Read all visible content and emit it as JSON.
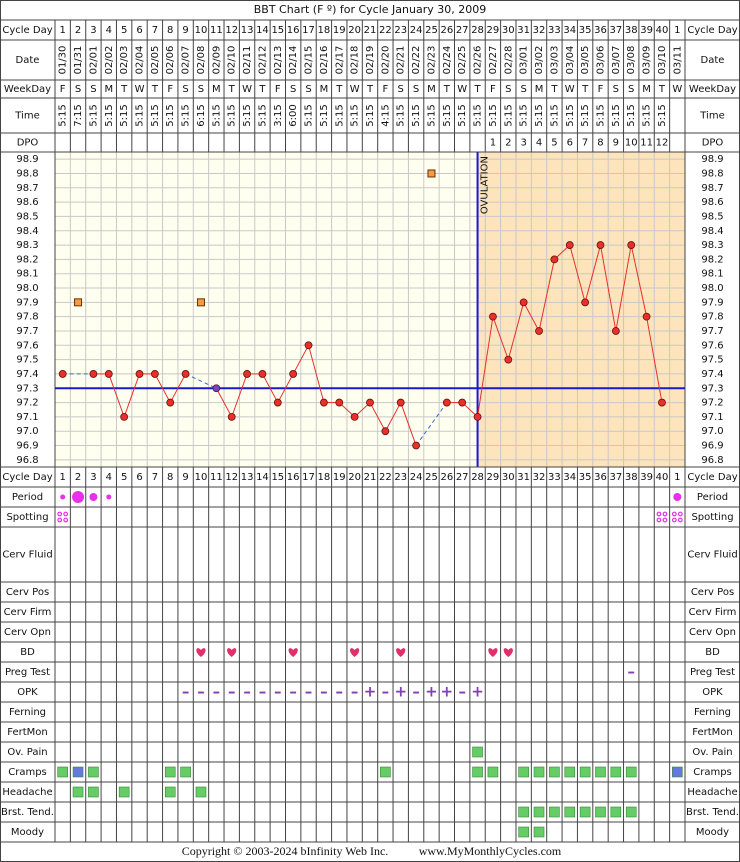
{
  "title": "BBT Chart (F º) for Cycle January 30, 2009",
  "header_labels": {
    "cycle_day": "Cycle Day",
    "date": "Date",
    "weekday": "WeekDay",
    "time": "Time",
    "dpo": "DPO"
  },
  "columns": {
    "cycle_day": [
      1,
      2,
      3,
      4,
      5,
      6,
      7,
      8,
      9,
      10,
      11,
      12,
      13,
      14,
      15,
      16,
      17,
      18,
      19,
      20,
      21,
      22,
      23,
      24,
      25,
      26,
      27,
      28,
      29,
      30,
      31,
      32,
      33,
      34,
      35,
      36,
      37,
      38,
      39,
      40,
      1
    ],
    "date": [
      "01/30",
      "01/31",
      "02/01",
      "02/02",
      "02/03",
      "02/04",
      "02/05",
      "02/06",
      "02/07",
      "02/08",
      "02/09",
      "02/10",
      "02/11",
      "02/12",
      "02/13",
      "02/14",
      "02/15",
      "02/16",
      "02/17",
      "02/18",
      "02/19",
      "02/20",
      "02/21",
      "02/22",
      "02/23",
      "02/24",
      "02/25",
      "02/26",
      "02/27",
      "02/28",
      "03/01",
      "03/02",
      "03/03",
      "03/04",
      "03/05",
      "03/06",
      "03/07",
      "03/08",
      "03/09",
      "03/10",
      "03/11"
    ],
    "weekday": [
      "F",
      "S",
      "S",
      "M",
      "T",
      "W",
      "T",
      "F",
      "S",
      "S",
      "M",
      "T",
      "W",
      "T",
      "F",
      "S",
      "S",
      "M",
      "T",
      "W",
      "T",
      "F",
      "S",
      "S",
      "M",
      "T",
      "W",
      "T",
      "F",
      "S",
      "S",
      "M",
      "T",
      "W",
      "T",
      "F",
      "S",
      "S",
      "M",
      "T",
      "W"
    ],
    "time": [
      "5:15",
      "7:15",
      "5:15",
      "5:15",
      "5:15",
      "5:15",
      "5:15",
      "5:15",
      "5:15",
      "6:15",
      "5:15",
      "5:15",
      "5:15",
      "5:15",
      "3:15",
      "6:00",
      "5:15",
      "5:15",
      "5:15",
      "5:15",
      "5:15",
      "4:15",
      "5:15",
      "5:15",
      "5:15",
      "5:15",
      "5:15",
      "5:15",
      "5:15",
      "5:15",
      "5:15",
      "5:15",
      "5:15",
      "5:15",
      "5:15",
      "5:15",
      "5:15",
      "5:15",
      "5:15",
      "5:15",
      null
    ],
    "dpo": [
      null,
      null,
      null,
      null,
      null,
      null,
      null,
      null,
      null,
      null,
      null,
      null,
      null,
      null,
      null,
      null,
      null,
      null,
      null,
      null,
      null,
      null,
      null,
      null,
      null,
      null,
      null,
      null,
      1,
      2,
      3,
      4,
      5,
      6,
      7,
      8,
      9,
      10,
      11,
      12,
      null
    ]
  },
  "chart_data": {
    "type": "line",
    "values": [
      97.4,
      97.9,
      97.4,
      97.4,
      97.1,
      97.4,
      97.4,
      97.2,
      97.4,
      97.9,
      97.3,
      97.1,
      97.4,
      97.4,
      97.2,
      97.4,
      97.6,
      97.2,
      97.2,
      97.1,
      97.2,
      97.0,
      97.2,
      96.9,
      98.8,
      97.2,
      97.2,
      97.1,
      97.8,
      97.5,
      97.9,
      97.7,
      98.2,
      98.3,
      97.9,
      98.3,
      97.7,
      98.3,
      97.8,
      97.2
    ],
    "markers": [
      "dot",
      "square",
      "dot",
      "dot",
      "dot",
      "dot",
      "dot",
      "dot",
      "dot",
      "square",
      "alt",
      "dot",
      "dot",
      "dot",
      "dot",
      "dot",
      "dot",
      "dot",
      "dot",
      "dot",
      "dot",
      "dot",
      "dot",
      "dot",
      "square",
      "dot",
      "dot",
      "dot",
      "dot",
      "dot",
      "dot",
      "dot",
      "dot",
      "dot",
      "dot",
      "dot",
      "dot",
      "dot",
      "dot",
      "dot"
    ],
    "color": "#e8302a",
    "ylim": [
      96.75,
      98.95
    ],
    "yticks": [
      98.9,
      98.8,
      98.7,
      98.6,
      98.5,
      98.4,
      98.3,
      98.2,
      98.1,
      {
        "value": 98,
        "label": "98.0"
      },
      97.9,
      97.8,
      97.7,
      97.6,
      97.5,
      97.4,
      97.3,
      97.2,
      97.1,
      {
        "value": 97,
        "label": "97.0"
      },
      96.9,
      96.8
    ],
    "grid": true,
    "coverline": 97.3,
    "ovulation_day": 28,
    "ovulation_label": "OVULATION"
  },
  "rows": [
    {
      "label": "Period",
      "symbol": "dot",
      "days": [
        1,
        2,
        3,
        4,
        41
      ],
      "levels": [
        1,
        3,
        2,
        1,
        2
      ],
      "color": "#e830e8"
    },
    {
      "label": "Spotting",
      "symbol": "spots",
      "days": [
        1,
        40,
        41
      ],
      "color": "#e830e8"
    },
    {
      "label": "Cerv Fluid"
    },
    {
      "label": "Cerv Pos"
    },
    {
      "label": "Cerv Firm"
    },
    {
      "label": "Cerv Opn"
    },
    {
      "label": "BD",
      "symbol": "heart",
      "days": [
        10,
        12,
        16,
        20,
        23,
        29,
        30
      ],
      "color": "#e0306a"
    },
    {
      "label": "Preg Test",
      "symbol": "text",
      "days": [
        38
      ],
      "labels": [
        "–"
      ],
      "color": "#8040b0"
    },
    {
      "label": "OPK",
      "symbol": "text",
      "days": [
        9,
        10,
        11,
        12,
        13,
        14,
        15,
        16,
        17,
        18,
        19,
        20,
        21,
        22,
        23,
        24,
        25,
        26,
        27,
        28
      ],
      "labels": [
        "–",
        "–",
        "–",
        "–",
        "–",
        "–",
        "–",
        "–",
        "–",
        "–",
        "–",
        "–",
        "+",
        "–",
        "+",
        "–",
        "+",
        "+",
        "–",
        "+"
      ],
      "color": "#8040b0"
    },
    {
      "label": "Ferning"
    },
    {
      "label": "FertMon"
    },
    {
      "label": "Ov. Pain",
      "symbol": "box",
      "days": [
        28
      ],
      "color": "#66cc66"
    },
    {
      "label": "Cramps",
      "symbol": "box",
      "days": [
        1,
        2,
        3,
        8,
        9,
        22,
        28,
        29,
        31,
        32,
        33,
        34,
        35,
        36,
        37,
        38,
        41
      ],
      "color": "#66cc66",
      "colors": [
        "#66cc66",
        "#6677dd",
        "#66cc66",
        "#66cc66",
        "#66cc66",
        "#66cc66",
        "#66cc66",
        "#66cc66",
        "#66cc66",
        "#66cc66",
        "#66cc66",
        "#66cc66",
        "#66cc66",
        "#66cc66",
        "#66cc66",
        "#66cc66",
        "#6677dd"
      ]
    },
    {
      "label": "Headache",
      "symbol": "box",
      "days": [
        2,
        3,
        5,
        8,
        10
      ],
      "color": "#66cc66"
    },
    {
      "label": "Brst. Tend.",
      "symbol": "box",
      "days": [
        31,
        32,
        33,
        34,
        35,
        36,
        37,
        38
      ],
      "color": "#66cc66"
    },
    {
      "label": "Moody",
      "symbol": "box",
      "days": [
        31,
        32
      ],
      "color": "#66cc66"
    }
  ],
  "footer": {
    "copyright": "Copyright © 2003-2024 bInfinity Web Inc.",
    "url": "www.MyMonthlyCycles.com"
  }
}
